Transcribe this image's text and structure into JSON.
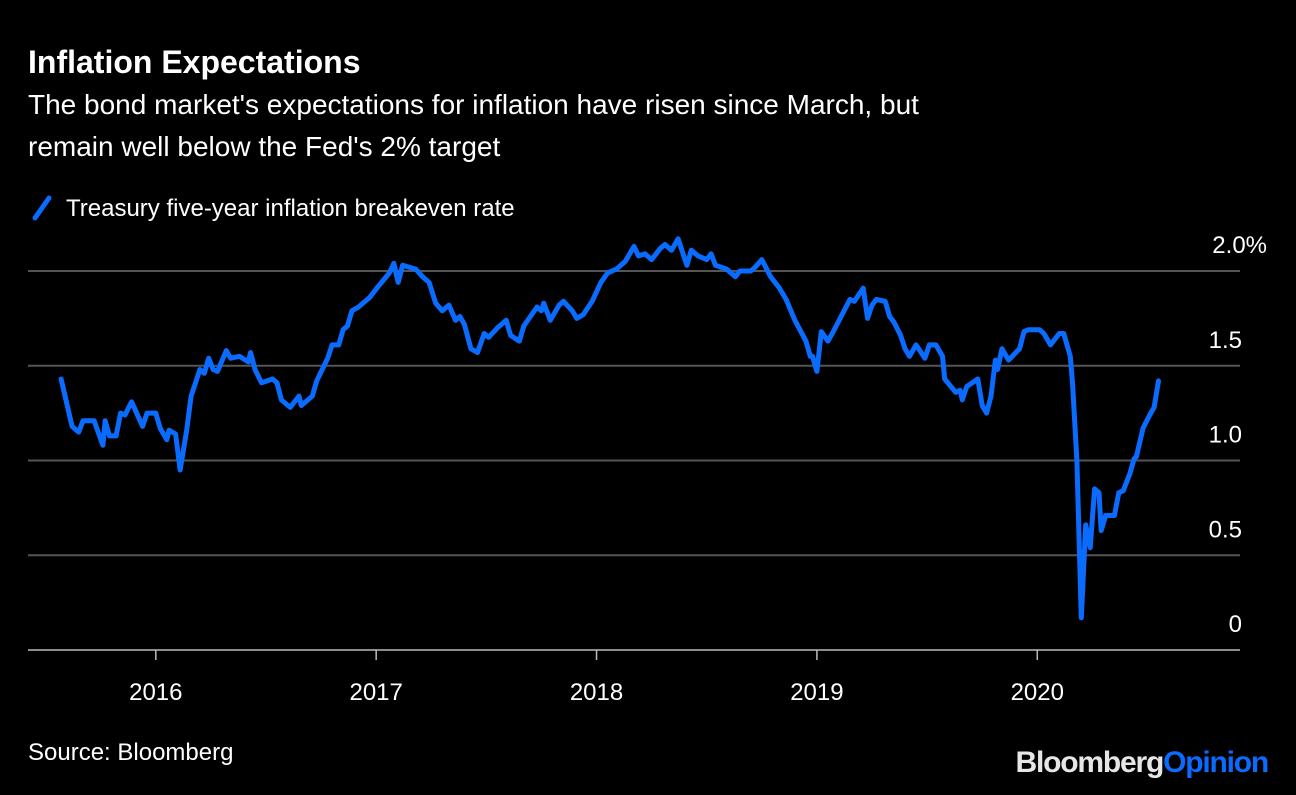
{
  "chart_data": {
    "type": "line",
    "title": "Inflation Expectations",
    "subtitle_lines": [
      "The bond market's expectations for inflation have risen since March, but",
      "remain well below the Fed's 2% target"
    ],
    "legend": "top-left",
    "series": [
      {
        "name": "Treasury five-year inflation breakeven rate",
        "color": "#0a6cff",
        "points": [
          [
            2015.57,
            1.43
          ],
          [
            2015.59,
            1.33
          ],
          [
            2015.62,
            1.18
          ],
          [
            2015.65,
            1.15
          ],
          [
            2015.67,
            1.21
          ],
          [
            2015.72,
            1.21
          ],
          [
            2015.76,
            1.08
          ],
          [
            2015.77,
            1.21
          ],
          [
            2015.79,
            1.13
          ],
          [
            2015.82,
            1.13
          ],
          [
            2015.84,
            1.25
          ],
          [
            2015.86,
            1.24
          ],
          [
            2015.89,
            1.31
          ],
          [
            2015.94,
            1.18
          ],
          [
            2015.96,
            1.25
          ],
          [
            2016.0,
            1.25
          ],
          [
            2016.02,
            1.17
          ],
          [
            2016.05,
            1.11
          ],
          [
            2016.06,
            1.16
          ],
          [
            2016.09,
            1.14
          ],
          [
            2016.11,
            0.95
          ],
          [
            2016.14,
            1.16
          ],
          [
            2016.16,
            1.34
          ],
          [
            2016.18,
            1.41
          ],
          [
            2016.2,
            1.48
          ],
          [
            2016.22,
            1.46
          ],
          [
            2016.24,
            1.54
          ],
          [
            2016.26,
            1.48
          ],
          [
            2016.28,
            1.47
          ],
          [
            2016.32,
            1.58
          ],
          [
            2016.34,
            1.54
          ],
          [
            2016.38,
            1.55
          ],
          [
            2016.42,
            1.52
          ],
          [
            2016.43,
            1.57
          ],
          [
            2016.45,
            1.48
          ],
          [
            2016.48,
            1.41
          ],
          [
            2016.53,
            1.43
          ],
          [
            2016.55,
            1.41
          ],
          [
            2016.57,
            1.32
          ],
          [
            2016.61,
            1.28
          ],
          [
            2016.65,
            1.34
          ],
          [
            2016.66,
            1.29
          ],
          [
            2016.71,
            1.34
          ],
          [
            2016.73,
            1.42
          ],
          [
            2016.78,
            1.54
          ],
          [
            2016.8,
            1.61
          ],
          [
            2016.83,
            1.61
          ],
          [
            2016.85,
            1.69
          ],
          [
            2016.87,
            1.71
          ],
          [
            2016.89,
            1.79
          ],
          [
            2016.92,
            1.81
          ],
          [
            2016.97,
            1.86
          ],
          [
            2017.01,
            1.92
          ],
          [
            2017.06,
            1.99
          ],
          [
            2017.08,
            2.04
          ],
          [
            2017.1,
            1.94
          ],
          [
            2017.12,
            2.03
          ],
          [
            2017.18,
            2.01
          ],
          [
            2017.21,
            1.97
          ],
          [
            2017.24,
            1.94
          ],
          [
            2017.27,
            1.83
          ],
          [
            2017.3,
            1.79
          ],
          [
            2017.33,
            1.82
          ],
          [
            2017.36,
            1.74
          ],
          [
            2017.38,
            1.76
          ],
          [
            2017.4,
            1.72
          ],
          [
            2017.43,
            1.59
          ],
          [
            2017.46,
            1.57
          ],
          [
            2017.49,
            1.67
          ],
          [
            2017.51,
            1.65
          ],
          [
            2017.55,
            1.7
          ],
          [
            2017.59,
            1.74
          ],
          [
            2017.61,
            1.66
          ],
          [
            2017.65,
            1.63
          ],
          [
            2017.67,
            1.71
          ],
          [
            2017.7,
            1.76
          ],
          [
            2017.73,
            1.81
          ],
          [
            2017.75,
            1.79
          ],
          [
            2017.76,
            1.83
          ],
          [
            2017.79,
            1.74
          ],
          [
            2017.83,
            1.82
          ],
          [
            2017.85,
            1.84
          ],
          [
            2017.89,
            1.79
          ],
          [
            2017.91,
            1.75
          ],
          [
            2017.94,
            1.77
          ],
          [
            2017.98,
            1.84
          ],
          [
            2018.02,
            1.94
          ],
          [
            2018.05,
            1.99
          ],
          [
            2018.09,
            2.01
          ],
          [
            2018.13,
            2.05
          ],
          [
            2018.17,
            2.13
          ],
          [
            2018.19,
            2.08
          ],
          [
            2018.22,
            2.09
          ],
          [
            2018.25,
            2.06
          ],
          [
            2018.29,
            2.12
          ],
          [
            2018.31,
            2.14
          ],
          [
            2018.34,
            2.11
          ],
          [
            2018.37,
            2.17
          ],
          [
            2018.41,
            2.03
          ],
          [
            2018.43,
            2.11
          ],
          [
            2018.46,
            2.08
          ],
          [
            2018.5,
            2.06
          ],
          [
            2018.52,
            2.09
          ],
          [
            2018.54,
            2.03
          ],
          [
            2018.59,
            2.01
          ],
          [
            2018.63,
            1.97
          ],
          [
            2018.65,
            2.0
          ],
          [
            2018.7,
            2.0
          ],
          [
            2018.72,
            2.02
          ],
          [
            2018.75,
            2.06
          ],
          [
            2018.79,
            1.97
          ],
          [
            2018.83,
            1.91
          ],
          [
            2018.86,
            1.85
          ],
          [
            2018.9,
            1.74
          ],
          [
            2018.95,
            1.63
          ],
          [
            2018.97,
            1.55
          ],
          [
            2018.98,
            1.55
          ],
          [
            2019.0,
            1.47
          ],
          [
            2019.02,
            1.68
          ],
          [
            2019.05,
            1.63
          ],
          [
            2019.07,
            1.67
          ],
          [
            2019.11,
            1.76
          ],
          [
            2019.15,
            1.85
          ],
          [
            2019.17,
            1.84
          ],
          [
            2019.21,
            1.91
          ],
          [
            2019.23,
            1.75
          ],
          [
            2019.25,
            1.82
          ],
          [
            2019.27,
            1.85
          ],
          [
            2019.31,
            1.84
          ],
          [
            2019.33,
            1.76
          ],
          [
            2019.35,
            1.73
          ],
          [
            2019.38,
            1.66
          ],
          [
            2019.4,
            1.59
          ],
          [
            2019.42,
            1.55
          ],
          [
            2019.45,
            1.61
          ],
          [
            2019.49,
            1.54
          ],
          [
            2019.51,
            1.61
          ],
          [
            2019.54,
            1.61
          ],
          [
            2019.57,
            1.55
          ],
          [
            2019.58,
            1.43
          ],
          [
            2019.63,
            1.36
          ],
          [
            2019.65,
            1.37
          ],
          [
            2019.66,
            1.32
          ],
          [
            2019.68,
            1.39
          ],
          [
            2019.73,
            1.43
          ],
          [
            2019.75,
            1.29
          ],
          [
            2019.77,
            1.25
          ],
          [
            2019.79,
            1.34
          ],
          [
            2019.81,
            1.53
          ],
          [
            2019.82,
            1.48
          ],
          [
            2019.84,
            1.59
          ],
          [
            2019.87,
            1.53
          ],
          [
            2019.92,
            1.59
          ],
          [
            2019.94,
            1.68
          ],
          [
            2019.96,
            1.69
          ],
          [
            2020.01,
            1.69
          ],
          [
            2020.03,
            1.67
          ],
          [
            2020.06,
            1.61
          ],
          [
            2020.1,
            1.67
          ],
          [
            2020.12,
            1.67
          ],
          [
            2020.15,
            1.55
          ],
          [
            2020.16,
            1.41
          ],
          [
            2020.18,
            1.0
          ],
          [
            2020.2,
            0.17
          ],
          [
            2020.22,
            0.66
          ],
          [
            2020.24,
            0.54
          ],
          [
            2020.26,
            0.85
          ],
          [
            2020.28,
            0.83
          ],
          [
            2020.29,
            0.63
          ],
          [
            2020.31,
            0.71
          ],
          [
            2020.35,
            0.71
          ],
          [
            2020.37,
            0.83
          ],
          [
            2020.39,
            0.84
          ],
          [
            2020.42,
            0.93
          ],
          [
            2020.44,
            1.01
          ],
          [
            2020.45,
            1.02
          ],
          [
            2020.48,
            1.17
          ],
          [
            2020.51,
            1.24
          ],
          [
            2020.53,
            1.28
          ],
          [
            2020.55,
            1.42
          ]
        ]
      }
    ],
    "x_ticks": [
      {
        "value": 2016,
        "label": "2016"
      },
      {
        "value": 2017,
        "label": "2017"
      },
      {
        "value": 2018,
        "label": "2018"
      },
      {
        "value": 2019,
        "label": "2019"
      },
      {
        "value": 2020,
        "label": "2020"
      }
    ],
    "y_ticks": [
      {
        "value": 0,
        "label": "0"
      },
      {
        "value": 0.5,
        "label": "0.5"
      },
      {
        "value": 1.0,
        "label": "1.0"
      },
      {
        "value": 1.5,
        "label": "1.5"
      },
      {
        "value": 2.0,
        "label": "2.0%"
      }
    ],
    "xlim": [
      2015.42,
      2020.92
    ],
    "ylim": [
      0,
      2.0
    ],
    "grid": true,
    "gridline_color": "#555555",
    "source": "Source: Bloomberg",
    "logo": {
      "part1": "Bloomberg",
      "part2": "Opinion",
      "part1_color": "#e6e6e6",
      "part2_color": "#0a6cff"
    }
  }
}
